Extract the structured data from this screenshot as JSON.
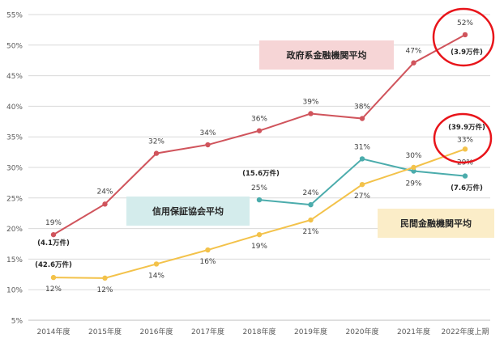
{
  "chart_data": {
    "type": "line",
    "categories": [
      "2014年度",
      "2015年度",
      "2016年度",
      "2017年度",
      "2018年度",
      "2019年度",
      "2020年度",
      "2021年度",
      "2022年度上期"
    ],
    "y_ticks": [
      "5%",
      "10%",
      "15%",
      "20%",
      "25%",
      "30%",
      "35%",
      "40%",
      "45%",
      "50%",
      "55%"
    ],
    "ylim": [
      5,
      55
    ],
    "grid": true,
    "series": [
      {
        "name": "政府系金融機関平均",
        "color": "#d0545c",
        "label_fill": "#f6d5d6",
        "values": [
          19,
          24,
          32.3,
          33.7,
          36,
          38.8,
          38,
          47.1,
          51.7
        ],
        "labels": [
          "19%",
          "24%",
          "32%",
          "34%",
          "36%",
          "39%",
          "38%",
          "47%",
          "52%"
        ],
        "notes": [
          "(4.1万件)",
          null,
          null,
          null,
          null,
          null,
          null,
          null,
          "(3.9万件)"
        ]
      },
      {
        "name": "信用保証協会平均",
        "color": "#4bacac",
        "label_fill": "#d4ecec",
        "values": [
          null,
          null,
          null,
          null,
          24.7,
          23.9,
          31.4,
          29.4,
          28.6
        ],
        "labels": [
          null,
          null,
          null,
          null,
          "25%",
          "24%",
          "31%",
          "29%",
          "29%"
        ],
        "notes": [
          null,
          null,
          null,
          null,
          "(15.6万件)",
          null,
          null,
          null,
          "(7.6万件)"
        ]
      },
      {
        "name": "民間金融機関平均",
        "color": "#f3c24a",
        "label_fill": "#fbedc8",
        "values": [
          12,
          11.9,
          14.2,
          16.5,
          19,
          21.4,
          27.2,
          30,
          33
        ],
        "labels": [
          "12%",
          "12%",
          "14%",
          "16%",
          "19%",
          "21%",
          "27%",
          "30%",
          "33%"
        ],
        "notes": [
          "(42.6万件)",
          null,
          null,
          null,
          null,
          null,
          null,
          null,
          "(39.9万件)"
        ]
      }
    ],
    "highlight_circles": [
      "52% (3.9万件)",
      "(39.9万件) 33%"
    ]
  }
}
